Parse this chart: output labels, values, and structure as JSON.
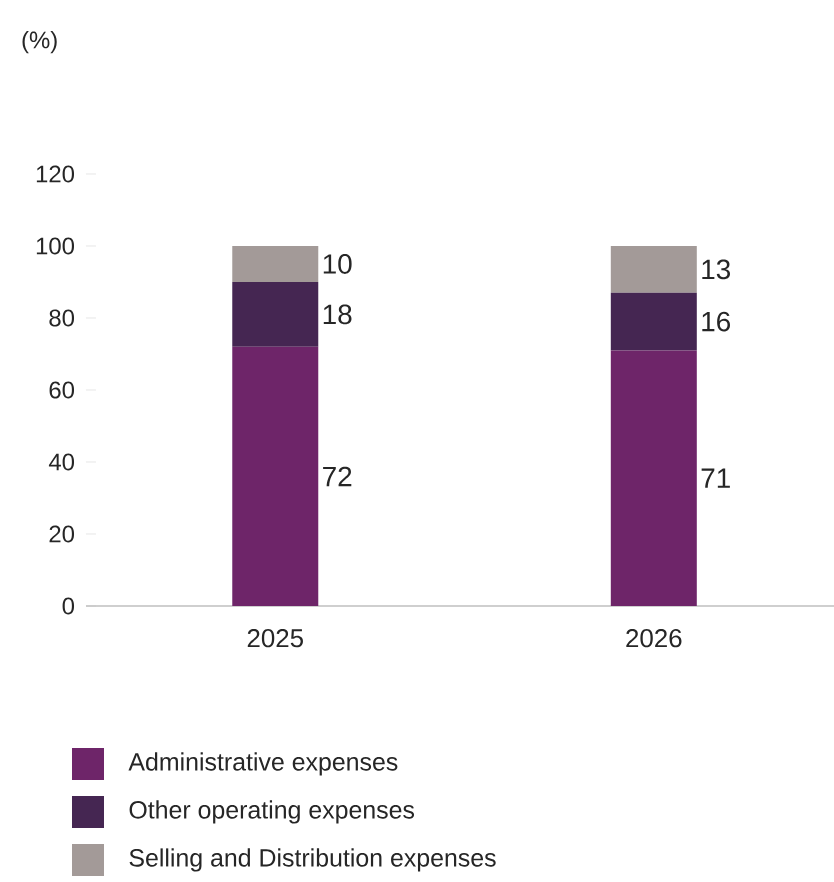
{
  "chart_data": {
    "type": "bar",
    "stacked": true,
    "ylabel": "(%)",
    "categories": [
      "2025",
      "2026"
    ],
    "series": [
      {
        "name": "Administrative expenses",
        "color": "#6e2569",
        "values": [
          72,
          71
        ]
      },
      {
        "name": "Other operating expenses",
        "color": "#452652",
        "values": [
          18,
          16
        ]
      },
      {
        "name": "Selling and Distribution expenses",
        "color": "#a39a98",
        "values": [
          10,
          13
        ]
      }
    ],
    "ylim": [
      0,
      120
    ],
    "yticks": [
      0,
      20,
      40,
      60,
      80,
      100,
      120
    ],
    "data_labels": true,
    "legend": "bottom",
    "grid": false
  }
}
